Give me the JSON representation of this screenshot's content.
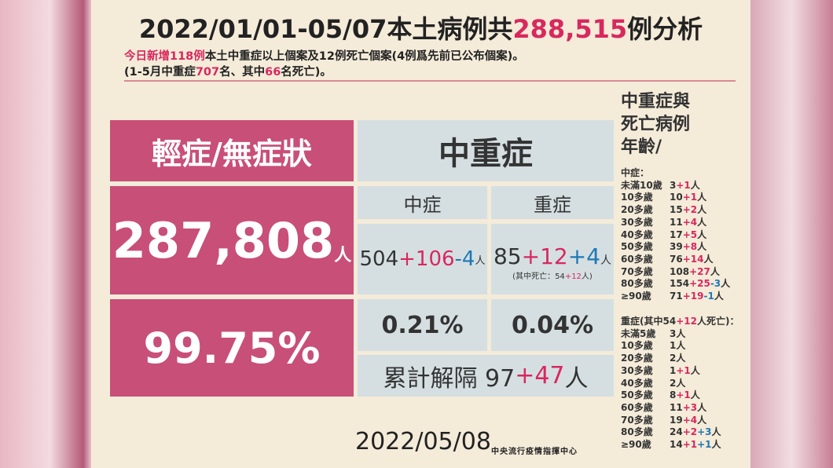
{
  "header": {
    "title": [
      {
        "text": "2022/01/01-05/07本土病例共"
      },
      {
        "text": "288,515",
        "color": "#d8285e"
      },
      {
        "text": "例分析"
      }
    ],
    "subtitle_lines": [
      [
        {
          "text": "今日新增118例",
          "color": "#d8285e"
        },
        {
          "text": "本土中重症以上個案及12例死亡個案(4例爲先前已公布個案)。"
        }
      ],
      [
        {
          "text": "(1-5月中重症"
        },
        {
          "text": "707",
          "color": "#d8285e"
        },
        {
          "text": "名、其中"
        },
        {
          "text": "66",
          "color": "#d8285e"
        },
        {
          "text": "名死亡)。"
        }
      ]
    ]
  },
  "mild": {
    "label": "輕症/無症狀",
    "count": "287,808",
    "unit": "人",
    "percent": "99.75%"
  },
  "severe": {
    "heading": "中重症",
    "moderate": {
      "label": "中症",
      "value": [
        {
          "text": "504"
        },
        {
          "text": "+106",
          "color": "#d8285e"
        },
        {
          "text": "-4",
          "color": "#1f78b4"
        },
        {
          "text": "人",
          "small": true
        }
      ],
      "percent": "0.21%"
    },
    "critical": {
      "label": "重症",
      "value": [
        {
          "text": "85"
        },
        {
          "text": "+12",
          "color": "#d8285e"
        },
        {
          "text": "+4",
          "color": "#1f78b4"
        },
        {
          "text": "人",
          "small": true
        }
      ],
      "note": [
        {
          "text": "(其中死亡：54"
        },
        {
          "text": "+12",
          "color": "#d8285e"
        },
        {
          "text": "人)"
        }
      ],
      "percent": "0.04%"
    },
    "released": [
      {
        "text": "累計解隔 97"
      },
      {
        "text": "+47",
        "color": "#d8285e"
      },
      {
        "text": "人"
      }
    ]
  },
  "age": {
    "heading_lines": [
      "中重症與",
      "死亡病例",
      "年齡/"
    ],
    "moderate": {
      "title": [
        {
          "text": "中症："
        }
      ],
      "rows": [
        {
          "age": "未滿10歲",
          "segments": [
            {
              "text": "3"
            },
            {
              "text": "+1",
              "color": "#d8285e"
            },
            {
              "text": "人"
            }
          ]
        },
        {
          "age": "10多歲",
          "segments": [
            {
              "text": "10"
            },
            {
              "text": "+1",
              "color": "#d8285e"
            },
            {
              "text": "人"
            }
          ]
        },
        {
          "age": "20多歲",
          "segments": [
            {
              "text": "15"
            },
            {
              "text": "+2",
              "color": "#d8285e"
            },
            {
              "text": "人"
            }
          ]
        },
        {
          "age": "30多歲",
          "segments": [
            {
              "text": "11"
            },
            {
              "text": "+4",
              "color": "#d8285e"
            },
            {
              "text": "人"
            }
          ]
        },
        {
          "age": "40多歲",
          "segments": [
            {
              "text": "17"
            },
            {
              "text": "+5",
              "color": "#d8285e"
            },
            {
              "text": "人"
            }
          ]
        },
        {
          "age": "50多歲",
          "segments": [
            {
              "text": "39"
            },
            {
              "text": "+8",
              "color": "#d8285e"
            },
            {
              "text": "人"
            }
          ]
        },
        {
          "age": "60多歲",
          "segments": [
            {
              "text": "76"
            },
            {
              "text": "+14",
              "color": "#d8285e"
            },
            {
              "text": "人"
            }
          ]
        },
        {
          "age": "70多歲",
          "segments": [
            {
              "text": "108"
            },
            {
              "text": "+27",
              "color": "#d8285e"
            },
            {
              "text": "人"
            }
          ]
        },
        {
          "age": "80多歲",
          "segments": [
            {
              "text": "154"
            },
            {
              "text": "+25",
              "color": "#d8285e"
            },
            {
              "text": "-3",
              "color": "#1f78b4"
            },
            {
              "text": "人"
            }
          ]
        },
        {
          "age": "≥90歲",
          "segments": [
            {
              "text": "71"
            },
            {
              "text": "+19",
              "color": "#d8285e"
            },
            {
              "text": "-1",
              "color": "#1f78b4"
            },
            {
              "text": "人"
            }
          ]
        }
      ]
    },
    "critical": {
      "title": [
        {
          "text": "重症(其中54"
        },
        {
          "text": "+12",
          "color": "#d8285e"
        },
        {
          "text": "人死亡)："
        }
      ],
      "rows": [
        {
          "age": "未滿5歲",
          "segments": [
            {
              "text": "3人"
            }
          ]
        },
        {
          "age": "10多歲",
          "segments": [
            {
              "text": "1人"
            }
          ]
        },
        {
          "age": "20多歲",
          "segments": [
            {
              "text": "2人"
            }
          ]
        },
        {
          "age": "30多歲",
          "segments": [
            {
              "text": "1"
            },
            {
              "text": "+1",
              "color": "#d8285e"
            },
            {
              "text": "人"
            }
          ]
        },
        {
          "age": "40多歲",
          "segments": [
            {
              "text": "2人"
            }
          ]
        },
        {
          "age": "50多歲",
          "segments": [
            {
              "text": "8"
            },
            {
              "text": "+1",
              "color": "#d8285e"
            },
            {
              "text": "人"
            }
          ]
        },
        {
          "age": "60多歲",
          "segments": [
            {
              "text": "11"
            },
            {
              "text": "+3",
              "color": "#d8285e"
            },
            {
              "text": "人"
            }
          ]
        },
        {
          "age": "70多歲",
          "segments": [
            {
              "text": "19"
            },
            {
              "text": "+4",
              "color": "#d8285e"
            },
            {
              "text": "人"
            }
          ]
        },
        {
          "age": "80多歲",
          "segments": [
            {
              "text": "24"
            },
            {
              "text": "+2",
              "color": "#d8285e"
            },
            {
              "text": "+3",
              "color": "#1f78b4"
            },
            {
              "text": "人"
            }
          ]
        },
        {
          "age": "≥90歲",
          "segments": [
            {
              "text": "14"
            },
            {
              "text": "+1",
              "color": "#d8285e"
            },
            {
              "text": "+1",
              "color": "#1f78b4"
            },
            {
              "text": "人"
            }
          ]
        }
      ]
    }
  },
  "footer": {
    "date": "2022/05/08",
    "source": "中央流行疫情指揮中心"
  }
}
